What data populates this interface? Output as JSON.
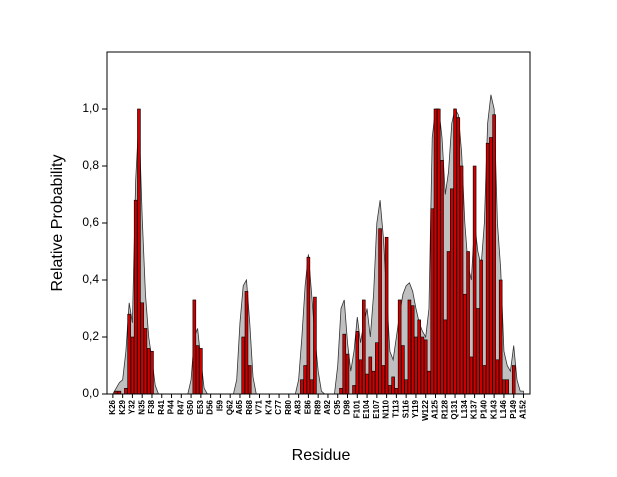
{
  "chart_data": {
    "type": "bar",
    "x_label": "Residue",
    "y_label": "Relative Probability",
    "categories": [
      "K26",
      null,
      null,
      "K29",
      null,
      null,
      "Y32",
      null,
      null,
      "N35",
      null,
      null,
      "F38",
      null,
      null,
      "R41",
      null,
      null,
      "P44",
      null,
      null,
      "R47",
      null,
      null,
      "G50",
      null,
      null,
      "E53",
      null,
      null,
      "D56",
      null,
      null,
      "I59",
      null,
      null,
      "Q62",
      null,
      null,
      "A65",
      null,
      null,
      "R68",
      null,
      null,
      "V71",
      null,
      null,
      "K74",
      null,
      null,
      "C77",
      null,
      null,
      "R80",
      null,
      null,
      "A83",
      null,
      null,
      "E86",
      null,
      null,
      "R89",
      null,
      null,
      "A92",
      null,
      null,
      "C95",
      null,
      null,
      "D98",
      null,
      null,
      "F101",
      null,
      null,
      "E104",
      null,
      null,
      "E107",
      null,
      null,
      "N110",
      null,
      null,
      "T113",
      null,
      null,
      "S116",
      null,
      null,
      "Y119",
      null,
      null,
      "W122",
      null,
      null,
      "A125",
      null,
      null,
      "R128",
      null,
      null,
      "Q131",
      null,
      null,
      "L134",
      null,
      null,
      "K137",
      null,
      null,
      "P140",
      null,
      null,
      "K143",
      null,
      null,
      "L146",
      null,
      null,
      "P149",
      null,
      null,
      "A152"
    ],
    "series": [
      {
        "type": "area",
        "color": "#c0c0c0",
        "values": [
          0,
          0.02,
          0.04,
          0.05,
          0.15,
          0.32,
          0.25,
          0.75,
          0.97,
          0.62,
          0.35,
          0.2,
          0.12,
          0.03,
          0,
          0,
          0,
          0,
          0,
          0,
          0,
          0,
          0,
          0,
          0.05,
          0.2,
          0.23,
          0.12,
          0.02,
          0,
          0,
          0,
          0,
          0,
          0,
          0,
          0,
          0,
          0.05,
          0.25,
          0.38,
          0.4,
          0.25,
          0.06,
          0,
          0,
          0,
          0,
          0,
          0,
          0,
          0,
          0,
          0,
          0,
          0,
          0,
          0.05,
          0.2,
          0.38,
          0.49,
          0.35,
          0.2,
          0.08,
          0.01,
          0,
          0,
          0,
          0,
          0.1,
          0.3,
          0.33,
          0.18,
          0.08,
          0.15,
          0.27,
          0.18,
          0.25,
          0.3,
          0.2,
          0.35,
          0.6,
          0.68,
          0.55,
          0.35,
          0.15,
          0.12,
          0.2,
          0.28,
          0.35,
          0.38,
          0.39,
          0.36,
          0.3,
          0.25,
          0.22,
          0.2,
          0.3,
          0.9,
          1.0,
          1.0,
          0.9,
          0.7,
          0.78,
          0.95,
          1.0,
          0.98,
          0.85,
          0.6,
          0.45,
          0.4,
          0.6,
          0.5,
          0.45,
          0.6,
          0.95,
          1.05,
          1.0,
          0.6,
          0.44,
          0.15,
          0.1,
          0.08,
          0.17,
          0.05,
          0.01,
          0.01
        ]
      },
      {
        "type": "bar",
        "color": "#cc0000",
        "values": [
          0,
          0.01,
          0.01,
          0,
          0.02,
          0.28,
          0.2,
          0.68,
          1.0,
          0.32,
          0.23,
          0.16,
          0.15,
          0,
          0,
          0,
          0,
          0,
          0,
          0,
          0,
          0,
          0,
          0,
          0,
          0.33,
          0.17,
          0.16,
          0,
          0,
          0,
          0,
          0,
          0,
          0,
          0,
          0,
          0,
          0,
          0,
          0.2,
          0.36,
          0.1,
          0,
          0,
          0,
          0,
          0,
          0,
          0,
          0,
          0,
          0,
          0,
          0,
          0,
          0,
          0,
          0.05,
          0.1,
          0.48,
          0.05,
          0.34,
          0,
          0,
          0,
          0,
          0,
          0,
          0,
          0.02,
          0.21,
          0.14,
          0,
          0.03,
          0.22,
          0.12,
          0.33,
          0.07,
          0.13,
          0.08,
          0.18,
          0.58,
          0.1,
          0.55,
          0.03,
          0.06,
          0.02,
          0.33,
          0.17,
          0.05,
          0.33,
          0.31,
          0.2,
          0.26,
          0.2,
          0.19,
          0.08,
          0.65,
          1.0,
          1.0,
          0.82,
          0.26,
          0.5,
          0.72,
          1.0,
          0.97,
          0.8,
          0.35,
          0.5,
          0.13,
          0.8,
          0.3,
          0.47,
          0.1,
          0.88,
          0.9,
          0.98,
          0.12,
          0.4,
          0.05,
          0.05,
          0,
          0.1,
          0,
          0,
          0
        ]
      }
    ],
    "ylim": [
      0,
      1.2
    ],
    "yticks": [
      {
        "value": 0,
        "label": "0,0"
      },
      {
        "value": 0.2,
        "label": "0,2"
      },
      {
        "value": 0.4,
        "label": "0,4"
      },
      {
        "value": 0.6,
        "label": "0,6"
      },
      {
        "value": 0.8,
        "label": "0,8"
      },
      {
        "value": 1.0,
        "label": "1,0"
      }
    ]
  }
}
